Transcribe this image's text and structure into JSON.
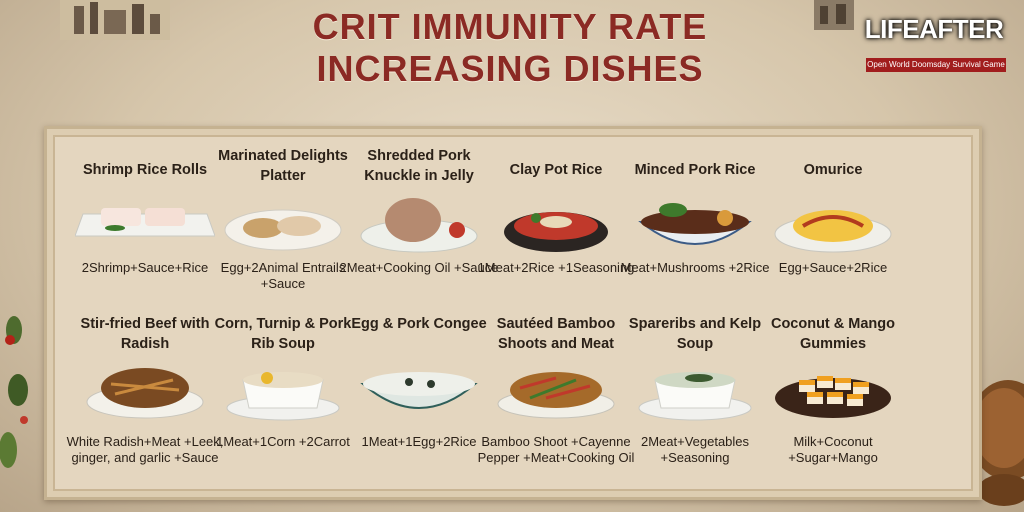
{
  "title": {
    "line1": "CRIT IMMUNITY RATE",
    "line2": "INCREASING DISHES"
  },
  "logo": {
    "name": "LIFEAFTER",
    "tagline": "Open World Doomsday Survival Game"
  },
  "dishes": [
    {
      "name": "Shrimp Rice Rolls",
      "recipe": "2Shrimp+Sauce+Rice",
      "icon": "rice-roll-icon"
    },
    {
      "name": "Marinated Delights Platter",
      "recipe": "Egg+2Animal Entrails +Sauce",
      "icon": "platter-icon"
    },
    {
      "name": "Shredded Pork Knuckle in Jelly",
      "recipe": "2Meat+Cooking Oil +Sauce",
      "icon": "pork-knuckle-icon"
    },
    {
      "name": "Clay Pot Rice",
      "recipe": "1Meat+2Rice +1Seasoning",
      "icon": "clay-pot-icon"
    },
    {
      "name": "Minced Pork Rice",
      "recipe": "Meat+Mushrooms +2Rice",
      "icon": "pork-rice-bowl-icon"
    },
    {
      "name": "Omurice",
      "recipe": "Egg+Sauce+2Rice",
      "icon": "omurice-icon"
    },
    {
      "name": "Stir-fried Beef with Radish",
      "recipe": "White Radish+Meat +Leek, ginger, and garlic +Sauce",
      "icon": "stir-fry-icon"
    },
    {
      "name": "Corn, Turnip & Pork Rib Soup",
      "recipe": "1Meat+1Corn +2Carrot",
      "icon": "soup-bowl-icon"
    },
    {
      "name": "Egg & Pork Congee",
      "recipe": "1Meat+1Egg+2Rice",
      "icon": "congee-icon"
    },
    {
      "name": "Sautéed Bamboo Shoots and Meat",
      "recipe": "Bamboo Shoot +Cayenne Pepper +Meat+Cooking Oil",
      "icon": "bamboo-dish-icon"
    },
    {
      "name": "Spareribs and Kelp Soup",
      "recipe": "2Meat+Vegetables +Seasoning",
      "icon": "kelp-soup-icon"
    },
    {
      "name": "Coconut & Mango Gummies",
      "recipe": "Milk+Coconut +Sugar+Mango",
      "icon": "gummies-icon"
    }
  ],
  "colors": {
    "title": "#8b2a24",
    "text": "#2b2118",
    "board": "#e4d6bf",
    "logo_band": "#a11d1d"
  }
}
